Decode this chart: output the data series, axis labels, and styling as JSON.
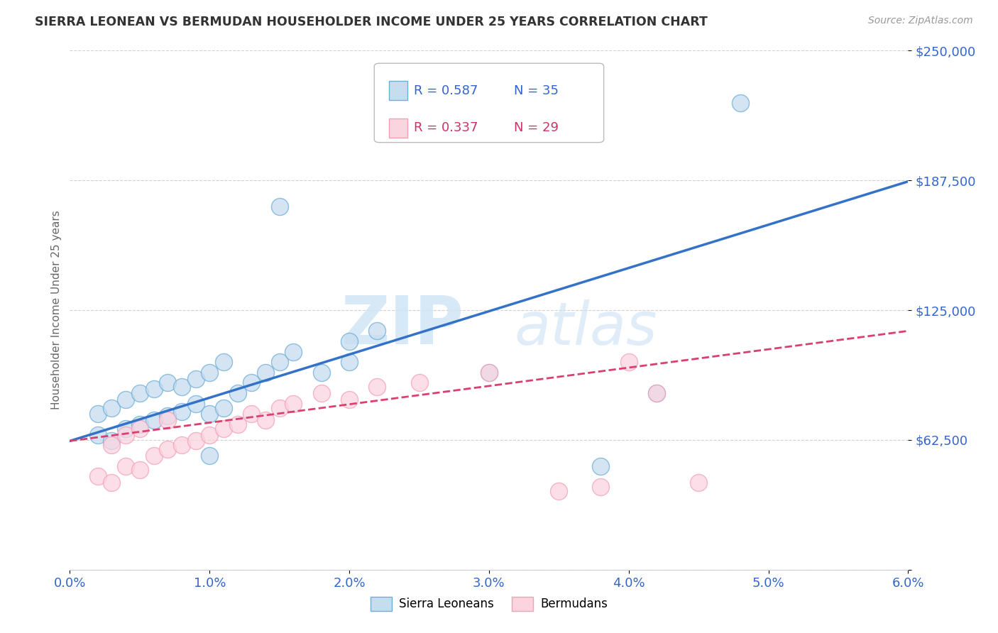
{
  "title": "SIERRA LEONEAN VS BERMUDAN HOUSEHOLDER INCOME UNDER 25 YEARS CORRELATION CHART",
  "source_text": "Source: ZipAtlas.com",
  "ylabel": "Householder Income Under 25 years",
  "xlim": [
    0.0,
    0.06
  ],
  "ylim": [
    0,
    250000
  ],
  "yticks": [
    0,
    62500,
    125000,
    187500,
    250000
  ],
  "ytick_labels": [
    "",
    "$62,500",
    "$125,000",
    "$187,500",
    "$250,000"
  ],
  "xtick_labels": [
    "0.0%",
    "1.0%",
    "2.0%",
    "3.0%",
    "4.0%",
    "5.0%",
    "6.0%"
  ],
  "xticks": [
    0.0,
    0.01,
    0.02,
    0.03,
    0.04,
    0.05,
    0.06
  ],
  "sl_color": "#6baed6",
  "sl_color_fill": "#c6dcef",
  "bm_color": "#f4a0b5",
  "bm_color_fill": "#fad4df",
  "trend_sl_color": "#3472c8",
  "trend_bm_color": "#d94070",
  "legend_r_sl": "R = 0.587",
  "legend_n_sl": "N = 35",
  "legend_r_bm": "R = 0.337",
  "legend_n_bm": "N = 29",
  "watermark_zip": "ZIP",
  "watermark_atlas": "atlas",
  "sl_x": [
    0.002,
    0.002,
    0.003,
    0.003,
    0.004,
    0.004,
    0.005,
    0.005,
    0.006,
    0.006,
    0.007,
    0.007,
    0.008,
    0.008,
    0.009,
    0.009,
    0.01,
    0.01,
    0.01,
    0.011,
    0.011,
    0.012,
    0.013,
    0.014,
    0.015,
    0.016,
    0.018,
    0.02,
    0.022,
    0.015,
    0.02,
    0.03,
    0.048,
    0.042,
    0.038
  ],
  "sl_y": [
    65000,
    75000,
    62000,
    78000,
    68000,
    82000,
    70000,
    85000,
    72000,
    87000,
    74000,
    90000,
    76000,
    88000,
    80000,
    92000,
    55000,
    75000,
    95000,
    78000,
    100000,
    85000,
    90000,
    95000,
    100000,
    105000,
    95000,
    110000,
    115000,
    175000,
    100000,
    95000,
    225000,
    85000,
    50000
  ],
  "bm_x": [
    0.002,
    0.003,
    0.003,
    0.004,
    0.004,
    0.005,
    0.005,
    0.006,
    0.007,
    0.007,
    0.008,
    0.009,
    0.01,
    0.011,
    0.012,
    0.013,
    0.014,
    0.015,
    0.016,
    0.018,
    0.02,
    0.022,
    0.025,
    0.03,
    0.035,
    0.038,
    0.04,
    0.042,
    0.045
  ],
  "bm_y": [
    45000,
    42000,
    60000,
    50000,
    65000,
    48000,
    68000,
    55000,
    58000,
    72000,
    60000,
    62000,
    65000,
    68000,
    70000,
    75000,
    72000,
    78000,
    80000,
    85000,
    82000,
    88000,
    90000,
    95000,
    38000,
    40000,
    100000,
    85000,
    42000
  ],
  "trend_sl_x0": 0.0,
  "trend_sl_y0": 62000,
  "trend_sl_x1": 0.06,
  "trend_sl_y1": 187000,
  "trend_bm_x0": 0.0,
  "trend_bm_y0": 62000,
  "trend_bm_x1": 0.06,
  "trend_bm_y1": 115000,
  "background_color": "#ffffff",
  "grid_color": "#cccccc",
  "axis_color": "#3366cc",
  "title_color": "#333333",
  "legend_text_color_sl": "#3366cc",
  "legend_text_color_bm": "#cc3366"
}
